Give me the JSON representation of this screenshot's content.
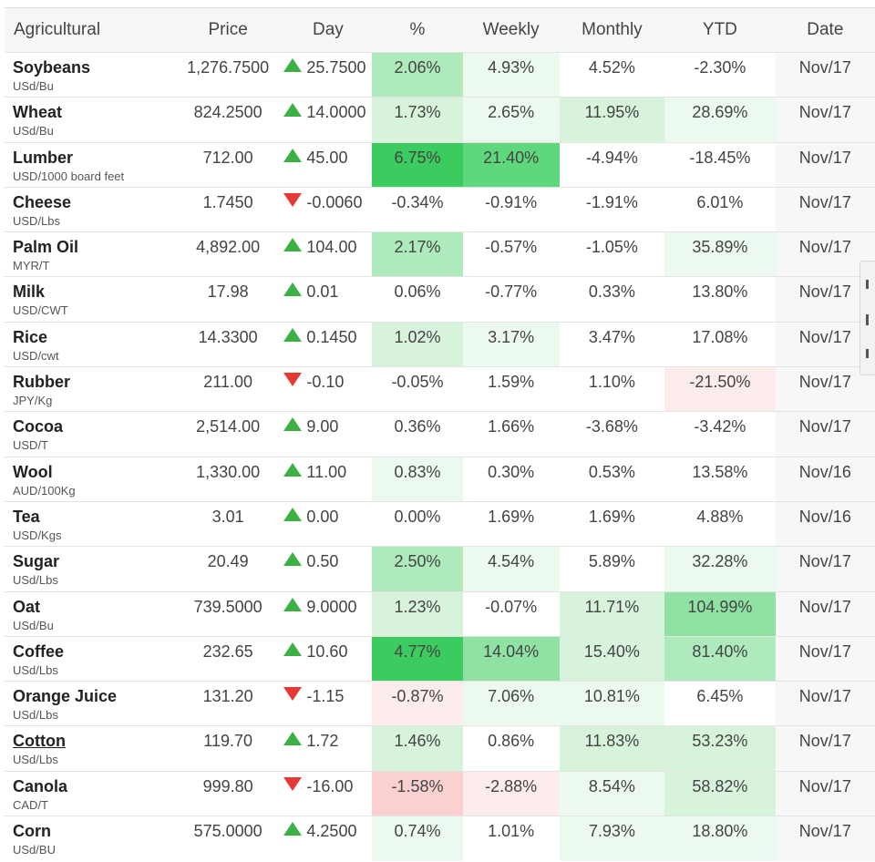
{
  "headers": [
    "Agricultural",
    "Price",
    "Day",
    "%",
    "Weekly",
    "Monthly",
    "YTD",
    "Date"
  ],
  "colors": {
    "up_arrow": "#3cb043",
    "down_arrow": "#e53935",
    "g1": "#ecf9ee",
    "g2": "#d7f3dc",
    "g3": "#aeeabb",
    "g4": "#90e2a4",
    "g5": "#5fd77c",
    "g6": "#3ccb5e",
    "r1": "#fdecec",
    "r2": "#fbd0d0",
    "none": "#ffffff",
    "date_bg": "#f7f7f7"
  },
  "rows": [
    {
      "name": "Soybeans",
      "unit": "USd/Bu",
      "price": "1,276.7500",
      "dir": "up",
      "day": "25.7500",
      "pct": "2.06%",
      "weekly": "4.93%",
      "monthly": "4.52%",
      "ytd": "-2.30%",
      "date": "Nov/17",
      "shade": [
        "g3",
        "g1",
        "none",
        "none"
      ]
    },
    {
      "name": "Wheat",
      "unit": "USd/Bu",
      "price": "824.2500",
      "dir": "up",
      "day": "14.0000",
      "pct": "1.73%",
      "weekly": "2.65%",
      "monthly": "11.95%",
      "ytd": "28.69%",
      "date": "Nov/17",
      "shade": [
        "g2",
        "g1",
        "g2",
        "g1"
      ]
    },
    {
      "name": "Lumber",
      "unit": "USD/1000 board feet",
      "price": "712.00",
      "dir": "up",
      "day": "45.00",
      "pct": "6.75%",
      "weekly": "21.40%",
      "monthly": "-4.94%",
      "ytd": "-18.45%",
      "date": "Nov/17",
      "shade": [
        "g6",
        "g5",
        "none",
        "none"
      ]
    },
    {
      "name": "Cheese",
      "unit": "USD/Lbs",
      "price": "1.7450",
      "dir": "down",
      "day": "-0.0060",
      "pct": "-0.34%",
      "weekly": "-0.91%",
      "monthly": "-1.91%",
      "ytd": "6.01%",
      "date": "Nov/17",
      "shade": [
        "none",
        "none",
        "none",
        "none"
      ]
    },
    {
      "name": "Palm Oil",
      "unit": "MYR/T",
      "price": "4,892.00",
      "dir": "up",
      "day": "104.00",
      "pct": "2.17%",
      "weekly": "-0.57%",
      "monthly": "-1.05%",
      "ytd": "35.89%",
      "date": "Nov/17",
      "shade": [
        "g3",
        "none",
        "none",
        "g1"
      ]
    },
    {
      "name": "Milk",
      "unit": "USD/CWT",
      "price": "17.98",
      "dir": "up",
      "day": "0.01",
      "pct": "0.06%",
      "weekly": "-0.77%",
      "monthly": "0.33%",
      "ytd": "13.80%",
      "date": "Nov/17",
      "shade": [
        "none",
        "none",
        "none",
        "none"
      ]
    },
    {
      "name": "Rice",
      "unit": "USD/cwt",
      "price": "14.3300",
      "dir": "up",
      "day": "0.1450",
      "pct": "1.02%",
      "weekly": "3.17%",
      "monthly": "3.47%",
      "ytd": "17.08%",
      "date": "Nov/17",
      "shade": [
        "g2",
        "g1",
        "none",
        "none"
      ]
    },
    {
      "name": "Rubber",
      "unit": "JPY/Kg",
      "price": "211.00",
      "dir": "down",
      "day": "-0.10",
      "pct": "-0.05%",
      "weekly": "1.59%",
      "monthly": "1.10%",
      "ytd": "-21.50%",
      "date": "Nov/17",
      "shade": [
        "none",
        "none",
        "none",
        "r1"
      ]
    },
    {
      "name": "Cocoa",
      "unit": "USD/T",
      "price": "2,514.00",
      "dir": "up",
      "day": "9.00",
      "pct": "0.36%",
      "weekly": "1.66%",
      "monthly": "-3.68%",
      "ytd": "-3.42%",
      "date": "Nov/17",
      "shade": [
        "none",
        "none",
        "none",
        "none"
      ]
    },
    {
      "name": "Wool",
      "unit": "AUD/100Kg",
      "price": "1,330.00",
      "dir": "up",
      "day": "11.00",
      "pct": "0.83%",
      "weekly": "0.30%",
      "monthly": "0.53%",
      "ytd": "13.58%",
      "date": "Nov/16",
      "shade": [
        "g1",
        "none",
        "none",
        "none"
      ]
    },
    {
      "name": "Tea",
      "unit": "USD/Kgs",
      "price": "3.01",
      "dir": "up",
      "day": "0.00",
      "pct": "0.00%",
      "weekly": "1.69%",
      "monthly": "1.69%",
      "ytd": "4.88%",
      "date": "Nov/16",
      "shade": [
        "none",
        "none",
        "none",
        "none"
      ]
    },
    {
      "name": "Sugar",
      "unit": "USd/Lbs",
      "price": "20.49",
      "dir": "up",
      "day": "0.50",
      "pct": "2.50%",
      "weekly": "4.54%",
      "monthly": "5.89%",
      "ytd": "32.28%",
      "date": "Nov/17",
      "shade": [
        "g3",
        "g1",
        "none",
        "g1"
      ]
    },
    {
      "name": "Oat",
      "unit": "USd/Bu",
      "price": "739.5000",
      "dir": "up",
      "day": "9.0000",
      "pct": "1.23%",
      "weekly": "-0.07%",
      "monthly": "11.71%",
      "ytd": "104.99%",
      "date": "Nov/17",
      "shade": [
        "g2",
        "none",
        "g2",
        "g4"
      ]
    },
    {
      "name": "Coffee",
      "unit": "USd/Lbs",
      "price": "232.65",
      "dir": "up",
      "day": "10.60",
      "pct": "4.77%",
      "weekly": "14.04%",
      "monthly": "15.40%",
      "ytd": "81.40%",
      "date": "Nov/17",
      "shade": [
        "g6",
        "g4",
        "g2",
        "g3"
      ]
    },
    {
      "name": "Orange Juice",
      "unit": "USd/Lbs",
      "price": "131.20",
      "dir": "down",
      "day": "-1.15",
      "pct": "-0.87%",
      "weekly": "7.06%",
      "monthly": "10.81%",
      "ytd": "6.45%",
      "date": "Nov/17",
      "shade": [
        "r1",
        "g1",
        "g1",
        "none"
      ]
    },
    {
      "name": "Cotton",
      "unit": "USd/Lbs",
      "price": "119.70",
      "dir": "up",
      "day": "1.72",
      "pct": "1.46%",
      "weekly": "0.86%",
      "monthly": "11.83%",
      "ytd": "53.23%",
      "date": "Nov/17",
      "shade": [
        "g2",
        "none",
        "g2",
        "g2"
      ],
      "link": true
    },
    {
      "name": "Canola",
      "unit": "CAD/T",
      "price": "999.80",
      "dir": "down",
      "day": "-16.00",
      "pct": "-1.58%",
      "weekly": "-2.88%",
      "monthly": "8.54%",
      "ytd": "58.82%",
      "date": "Nov/17",
      "shade": [
        "r2",
        "r1",
        "g1",
        "g2"
      ]
    },
    {
      "name": "Corn",
      "unit": "USd/BU",
      "price": "575.0000",
      "dir": "up",
      "day": "4.2500",
      "pct": "0.74%",
      "weekly": "1.01%",
      "monthly": "7.93%",
      "ytd": "18.80%",
      "date": "Nov/17",
      "shade": [
        "g1",
        "none",
        "g1",
        "g1"
      ]
    }
  ]
}
